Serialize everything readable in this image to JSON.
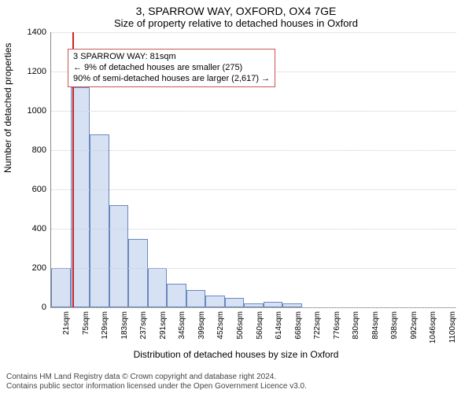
{
  "titles": {
    "line1": "3, SPARROW WAY, OXFORD, OX4 7GE",
    "line2": "Size of property relative to detached houses in Oxford"
  },
  "chart": {
    "type": "histogram",
    "ylabel": "Number of detached properties",
    "xlabel": "Distribution of detached houses by size in Oxford",
    "ylim": [
      0,
      1400
    ],
    "ytick_step": 200,
    "yticks": [
      0,
      200,
      400,
      600,
      800,
      1000,
      1200,
      1400
    ],
    "bar_fill": "#d6e2f3",
    "bar_border": "#6a87c0",
    "grid_color": "#cccccc",
    "axis_color": "#888888",
    "background_color": "#ffffff",
    "x_categories": [
      "21sqm",
      "75sqm",
      "129sqm",
      "183sqm",
      "237sqm",
      "291sqm",
      "345sqm",
      "399sqm",
      "452sqm",
      "506sqm",
      "560sqm",
      "614sqm",
      "668sqm",
      "722sqm",
      "776sqm",
      "830sqm",
      "884sqm",
      "938sqm",
      "992sqm",
      "1046sqm",
      "1100sqm"
    ],
    "bar_values": [
      200,
      1120,
      880,
      520,
      350,
      200,
      120,
      90,
      60,
      50,
      20,
      30,
      20,
      0,
      0,
      0,
      0,
      0,
      0,
      0,
      0
    ],
    "reference": {
      "index_position": 1.1,
      "color": "#cc2222",
      "box_border": "#cc5555",
      "lines": [
        "3 SPARROW WAY: 81sqm",
        "← 9% of detached houses are smaller (275)",
        "90% of semi-detached houses are larger (2,617) →"
      ]
    }
  },
  "footer": {
    "line1": "Contains HM Land Registry data © Crown copyright and database right 2024.",
    "line2": "Contains public sector information licensed under the Open Government Licence v3.0."
  }
}
